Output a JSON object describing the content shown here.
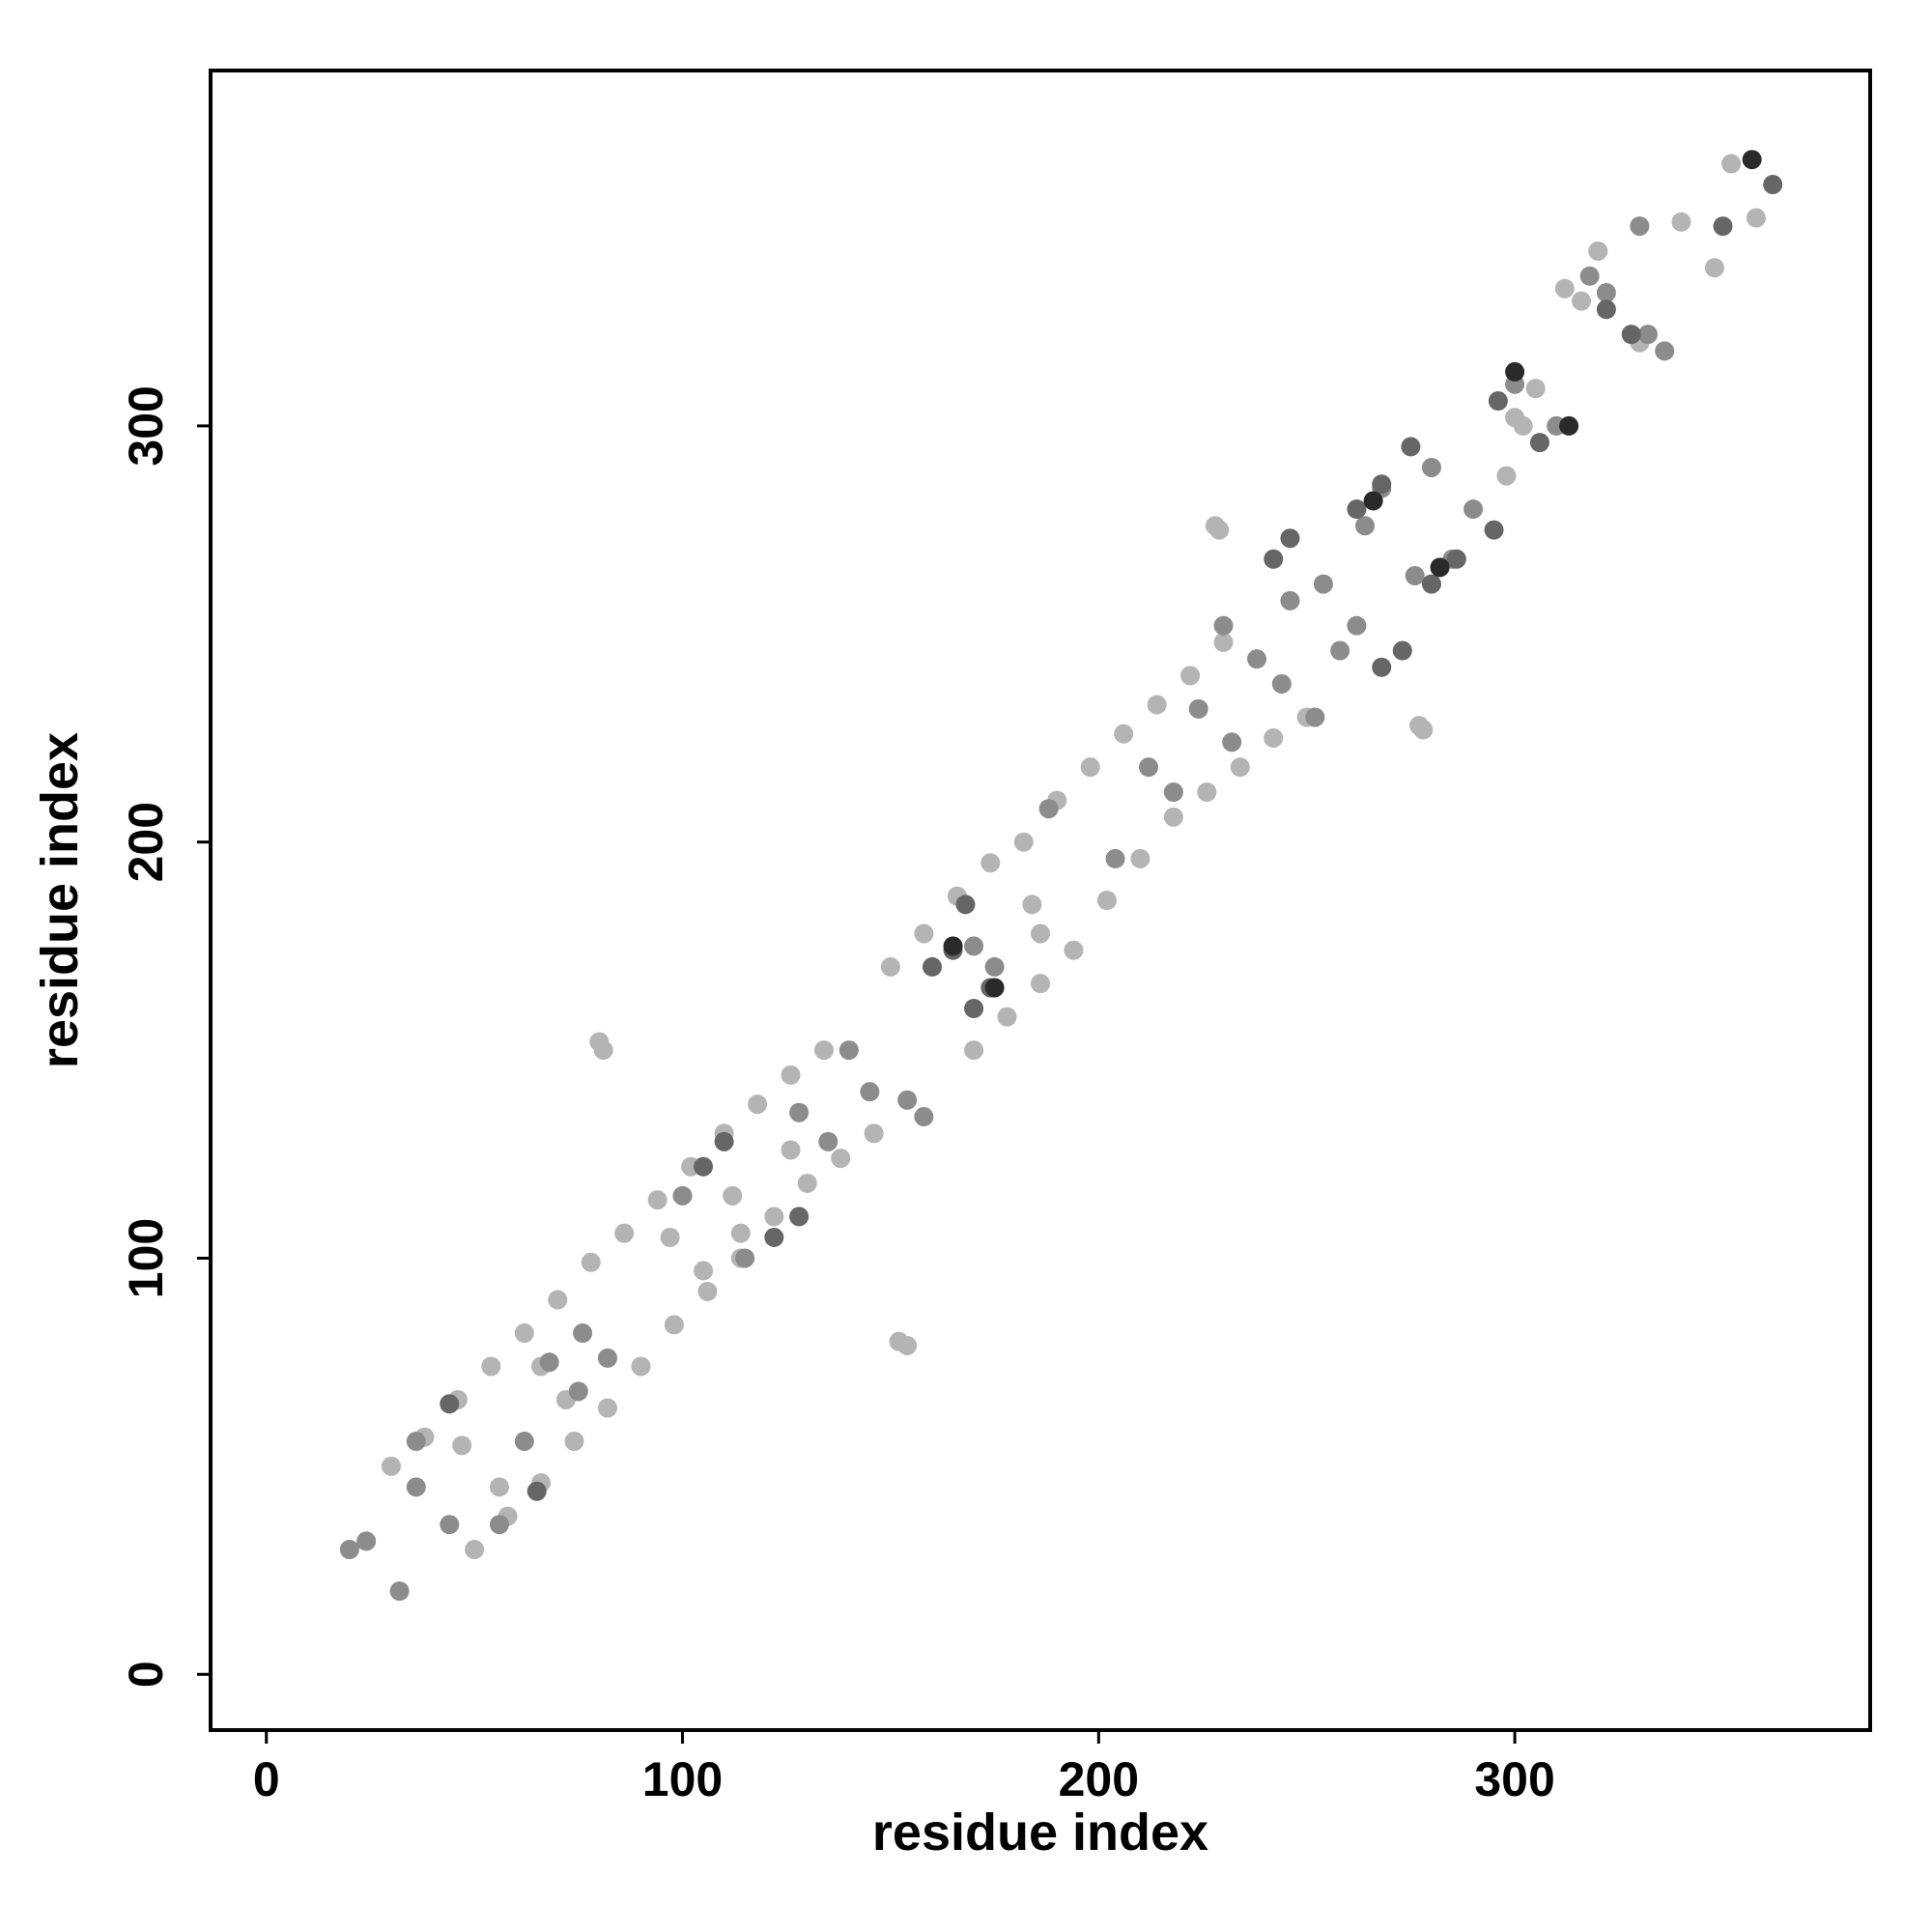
{
  "chart_data": {
    "type": "scatter",
    "xlabel": "residue index",
    "ylabel": "residue index",
    "xlim": [
      -13.4,
      385.4
    ],
    "ylim": [
      -13.4,
      385.4
    ],
    "xticks": [
      0,
      100,
      200,
      300
    ],
    "yticks": [
      0,
      100,
      200,
      300
    ],
    "grid": false,
    "series": [
      {
        "color": "#b4b4b4",
        "x": [
          30,
          38,
          46,
          54,
          62,
          70,
          78,
          86,
          94,
          102,
          110,
          118,
          126,
          134,
          150,
          158,
          166,
          174,
          182,
          190,
          198,
          206,
          214,
          222,
          230,
          50,
          58,
          66,
          74,
          82,
          90,
          98,
          106,
          114,
          122,
          130,
          138,
          146,
          170,
          178,
          186,
          194,
          202,
          210,
          218,
          226,
          234,
          242,
          250,
          80,
          81,
          152,
          154,
          228,
          229,
          277,
          278,
          316,
          330,
          340,
          348,
          352,
          358,
          300,
          302,
          305,
          312,
          320,
          47,
          56,
          72,
          66,
          97,
          105,
          112,
          114,
          126,
          184,
          186,
          298
        ],
        "y": [
          50,
          57,
          66,
          74,
          82,
          90,
          99,
          106,
          114,
          122,
          130,
          137,
          144,
          150,
          170,
          178,
          187,
          195,
          200,
          210,
          218,
          226,
          233,
          240,
          248,
          30,
          38,
          46,
          56,
          64,
          74,
          84,
          92,
          100,
          110,
          118,
          124,
          130,
          150,
          158,
          166,
          174,
          186,
          196,
          206,
          212,
          218,
          225,
          230,
          152,
          150,
          80,
          79,
          276,
          275,
          228,
          227,
          330,
          320,
          349,
          338,
          363,
          350,
          302,
          300,
          309,
          333,
          342,
          55,
          45,
          66,
          74,
          105,
          97,
          115,
          106,
          126,
          185,
          178,
          288
        ]
      },
      {
        "color": "#8c8c8c",
        "x": [
          20,
          24,
          32,
          36,
          44,
          36,
          56,
          62,
          68,
          75,
          76,
          82,
          100,
          115,
          128,
          135,
          140,
          145,
          154,
          158,
          175,
          170,
          188,
          204,
          212,
          218,
          224,
          232,
          246,
          258,
          254,
          262,
          268,
          285,
          280,
          290,
          300,
          310,
          322,
          332,
          336,
          318,
          330,
          264,
          276,
          238,
          244,
          252,
          230
        ],
        "y": [
          30,
          32,
          20,
          45,
          36,
          56,
          36,
          56,
          75,
          68,
          82,
          76,
          115,
          100,
          135,
          128,
          150,
          140,
          138,
          134,
          170,
          175,
          208,
          196,
          218,
          212,
          232,
          224,
          258,
          246,
          262,
          252,
          285,
          268,
          290,
          280,
          310,
          300,
          332,
          322,
          318,
          336,
          348,
          276,
          264,
          244,
          238,
          230,
          252
        ]
      },
      {
        "color": "#666666",
        "x": [
          44,
          65,
          105,
          122,
          110,
          128,
          165,
          174,
          168,
          160,
          170,
          262,
          268,
          286,
          280,
          296,
          306,
          275,
          295,
          242,
          268,
          246,
          273,
          322,
          328,
          362,
          350
        ],
        "y": [
          65,
          44,
          122,
          105,
          128,
          110,
          174,
          165,
          185,
          170,
          160,
          280,
          286,
          268,
          262,
          306,
          296,
          295,
          275,
          268,
          242,
          273,
          246,
          328,
          322,
          358,
          348
        ]
      },
      {
        "color": "#2a2a2a",
        "x": [
          165,
          175,
          266,
          282,
          300,
          313,
          357
        ],
        "y": [
          175,
          165,
          282,
          266,
          313,
          300,
          364
        ]
      }
    ]
  }
}
